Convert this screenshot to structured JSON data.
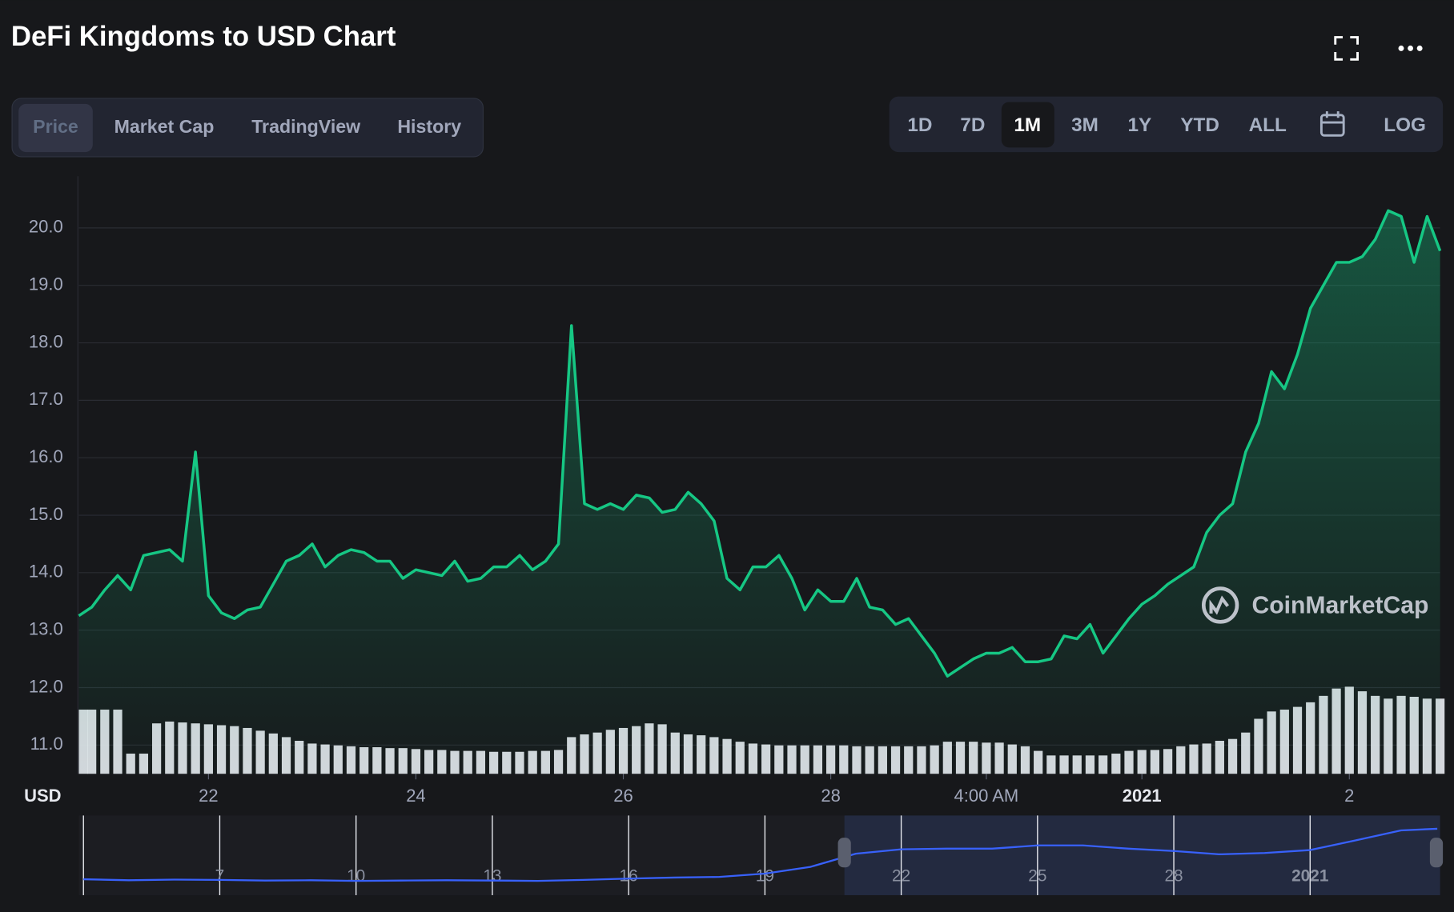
{
  "header": {
    "title": "DeFi Kingdoms to USD Chart"
  },
  "tabs": [
    "Price",
    "Market Cap",
    "TradingView",
    "History"
  ],
  "ranges": [
    "1D",
    "7D",
    "1M",
    "3M",
    "1Y",
    "YTD",
    "ALL"
  ],
  "scale_toggle": "LOG",
  "watermark": "CoinMarketCap",
  "chart_data": [
    {
      "type": "line",
      "y_unit": "USD",
      "color": "#16c784",
      "volume_color": "#e6e8ee",
      "x": [
        20.75,
        20.875,
        21,
        21.125,
        21.25,
        21.375,
        21.5,
        21.625,
        21.75,
        21.875,
        22,
        22.125,
        22.25,
        22.375,
        22.5,
        22.625,
        22.75,
        22.875,
        23,
        23.125,
        23.25,
        23.375,
        23.5,
        23.625,
        23.75,
        23.875,
        24,
        24.125,
        24.25,
        24.375,
        24.5,
        24.625,
        24.75,
        24.875,
        25,
        25.125,
        25.25,
        25.375,
        25.5,
        25.625,
        25.75,
        25.875,
        26,
        26.125,
        26.25,
        26.375,
        26.5,
        26.625,
        26.75,
        26.875,
        27,
        27.125,
        27.25,
        27.375,
        27.5,
        27.625,
        27.75,
        27.875,
        28,
        28.125,
        28.25,
        28.375,
        28.5,
        28.625,
        28.75,
        28.875,
        29,
        29.125,
        29.25,
        29.375,
        29.5,
        29.625,
        29.75,
        29.875,
        30,
        30.125,
        30.25,
        30.375,
        30.5,
        30.625,
        30.75,
        30.875,
        31,
        31.125,
        31.25,
        31.375,
        31.5,
        31.625,
        31.75,
        31.875,
        32,
        32.125,
        32.25,
        32.375,
        32.5,
        32.625,
        32.75,
        32.875,
        33,
        33.125,
        33.25,
        33.375,
        33.5,
        33.625,
        33.75,
        33.875
      ],
      "values": [
        13.25,
        13.4,
        13.7,
        13.95,
        13.7,
        14.3,
        14.35,
        14.4,
        14.2,
        16.1,
        13.6,
        13.3,
        13.2,
        13.35,
        13.4,
        13.8,
        14.2,
        14.3,
        14.5,
        14.1,
        14.3,
        14.4,
        14.35,
        14.2,
        14.2,
        13.9,
        14.05,
        14,
        13.95,
        14.2,
        13.85,
        13.9,
        14.1,
        14.1,
        14.3,
        14.05,
        14.2,
        14.5,
        18.3,
        15.2,
        15.1,
        15.2,
        15.1,
        15.35,
        15.3,
        15.05,
        15.1,
        15.4,
        15.2,
        14.9,
        13.9,
        13.7,
        14.1,
        14.1,
        14.3,
        13.9,
        13.35,
        13.7,
        13.5,
        13.5,
        13.9,
        13.4,
        13.35,
        13.1,
        13.2,
        12.9,
        12.6,
        12.2,
        12.35,
        12.5,
        12.6,
        12.6,
        12.7,
        12.45,
        12.45,
        12.5,
        12.9,
        12.85,
        13.1,
        12.6,
        12.9,
        13.2,
        13.45,
        13.6,
        13.8,
        13.95,
        14.1,
        14.7,
        15,
        15.2,
        16.1,
        16.6,
        17.5,
        17.2,
        17.8,
        18.6,
        19,
        19.4,
        19.4,
        19.5,
        19.8,
        20.3,
        20.2,
        19.4,
        20.2,
        19.6
      ],
      "volume": [
        70,
        70,
        70,
        70,
        22,
        22,
        55,
        57,
        56,
        55,
        54,
        53,
        52,
        50,
        47,
        44,
        40,
        36,
        33,
        32,
        31,
        30,
        29,
        29,
        28,
        28,
        27,
        26,
        26,
        25,
        25,
        25,
        24,
        24,
        24,
        25,
        25,
        26,
        40,
        43,
        45,
        48,
        50,
        52,
        55,
        54,
        45,
        43,
        42,
        40,
        38,
        35,
        33,
        32,
        31,
        31,
        31,
        31,
        31,
        31,
        30,
        30,
        30,
        30,
        30,
        30,
        31,
        35,
        35,
        35,
        34,
        34,
        32,
        30,
        25,
        20,
        20,
        20,
        20,
        20,
        22,
        25,
        26,
        26,
        27,
        30,
        32,
        33,
        36,
        38,
        45,
        60,
        68,
        70,
        73,
        78,
        85,
        93,
        95,
        90,
        85,
        82,
        85,
        84,
        82,
        82
      ],
      "xlim": [
        20.75,
        33.875
      ],
      "ylim": [
        10.5,
        20.9
      ],
      "yticks": [
        {
          "value": 11,
          "label": "11.0"
        },
        {
          "value": 12,
          "label": "12.0"
        },
        {
          "value": 13,
          "label": "13.0"
        },
        {
          "value": 14,
          "label": "14.0"
        },
        {
          "value": 15,
          "label": "15.0"
        },
        {
          "value": 16,
          "label": "16.0"
        },
        {
          "value": 17,
          "label": "17.0"
        },
        {
          "value": 18,
          "label": "18.0"
        },
        {
          "value": 19,
          "label": "19.0"
        },
        {
          "value": 20,
          "label": "20.0"
        }
      ],
      "xticks": [
        22,
        24,
        26,
        28,
        {
          "value": 29.5,
          "label": "4:00 AM"
        },
        {
          "value": 31,
          "label": "2021"
        },
        {
          "value": 33,
          "label": "2"
        }
      ],
      "grid": true
    },
    {
      "type": "navigator",
      "color": "#3861fb",
      "x": [
        4,
        5,
        6,
        7,
        8,
        9,
        10,
        11,
        12,
        13,
        14,
        15,
        16,
        17,
        18,
        19,
        20,
        21,
        22,
        23,
        24,
        25,
        26,
        27,
        28,
        29,
        30,
        31,
        32,
        33,
        33.8
      ],
      "values": [
        4.8,
        4.5,
        4.7,
        4.6,
        4.4,
        4.5,
        4.3,
        4.4,
        4.5,
        4.4,
        4.3,
        4.6,
        5,
        5.3,
        5.5,
        6.5,
        8.5,
        12.5,
        13.8,
        14,
        14,
        15,
        15,
        14,
        13.3,
        12.3,
        12.7,
        13.6,
        16.5,
        19.5,
        20
      ],
      "xlim": [
        4,
        33.8
      ],
      "ylim": [
        0,
        24
      ],
      "xticks": [
        7,
        10,
        13,
        16,
        19,
        22,
        25,
        28,
        {
          "value": 31,
          "label": "2021"
        }
      ]
    }
  ]
}
